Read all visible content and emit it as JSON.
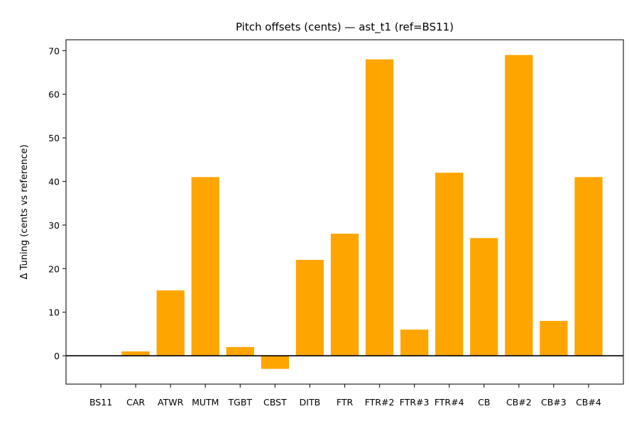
{
  "chart_data": {
    "type": "bar",
    "title": "Pitch offsets (cents) — ast_t1 (ref=BS11)",
    "xlabel": "",
    "ylabel": "Δ Tuning (cents vs reference)",
    "categories": [
      "BS11",
      "CAR",
      "ATWR",
      "MUTM",
      "TGBT",
      "CBST",
      "DITB",
      "FTR",
      "FTR#2",
      "FTR#3",
      "FTR#4",
      "CB",
      "CB#2",
      "CB#3",
      "CB#4"
    ],
    "values": [
      0,
      1,
      15,
      41,
      2,
      -3,
      22,
      28,
      68,
      6,
      42,
      27,
      69,
      8,
      41
    ],
    "ylim": [
      -6.5,
      72.5
    ],
    "yticks": [
      0,
      10,
      20,
      30,
      40,
      50,
      60,
      70
    ],
    "grid": false,
    "legend": null,
    "zero_line": true,
    "bar_color": "#ffa500",
    "axis_color": "#262626"
  }
}
